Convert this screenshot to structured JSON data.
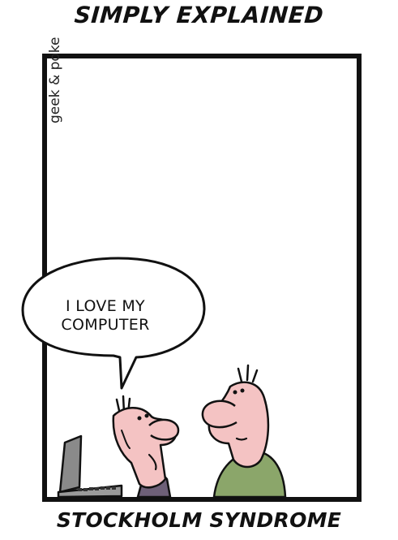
{
  "comic": {
    "title": "SIMPLY EXPLAINED",
    "caption": "STOCKHOLM SYNDROME",
    "signature": "geek & poke",
    "speech": {
      "line1": "I LOVE MY",
      "line2": "COMPUTER"
    }
  },
  "colors": {
    "skin": "#f4c3c3",
    "shirt_green": "#8ba66a",
    "shirt_purple": "#6e6078",
    "computer_gray": "#8a8a8a",
    "ink": "#111111"
  }
}
